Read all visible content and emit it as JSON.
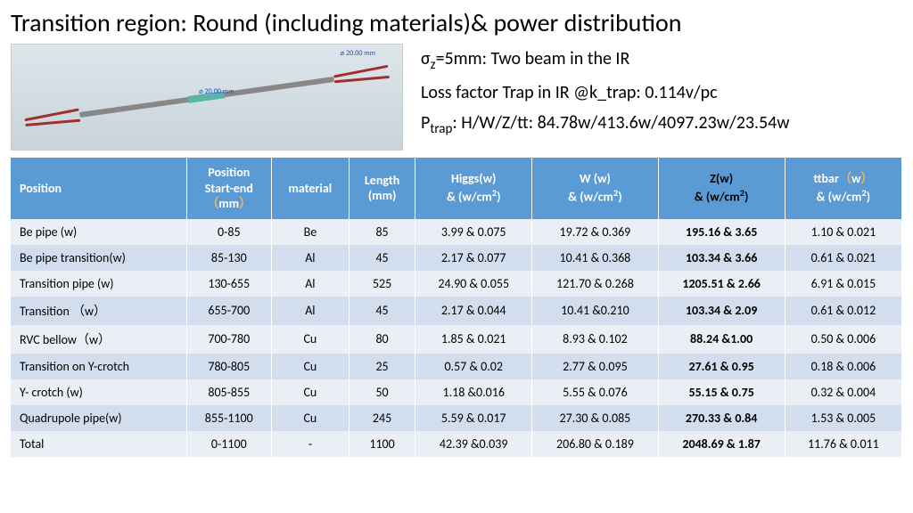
{
  "title": "Transition region: Round (including  materials)& power distribution",
  "cad": {
    "dim1": "⌀ 20.00 mm",
    "dim2": "⌀ 20.00 mm"
  },
  "info": {
    "line1_html": "σ<span class='sub'>z</span>=5mm: Two beam in the IR",
    "line2": "Loss factor Trap in IR @k_trap: 0.114v/pc",
    "line3_html": "P<span class='sub'>trap</span>: H/W/Z/tt:  84.78w/413.6w/4097.23w/23.54w"
  },
  "table": {
    "header_bg": "#5b9bd5",
    "row_odd_bg": "#eaeff5",
    "row_even_bg": "#d2deee",
    "columns": [
      {
        "label_html": "Position"
      },
      {
        "label_html": "Position<br>Start-end<br><span class='cn'>（</span>mm<span class='cn'>）</span>"
      },
      {
        "label_html": "material"
      },
      {
        "label_html": "Length<br>(mm)"
      },
      {
        "label_html": "Higgs(w)<br>& (w/cm<span class='sup'>2</span>)"
      },
      {
        "label_html": "W (w)<br>& (w/cm<span class='sup'>2</span>)"
      },
      {
        "label_html": "Z(w)<br>& (w/cm<span class='sup'>2</span>)",
        "z": true
      },
      {
        "label_html": "ttbar<span class='cn'>（</span>w<span class='cn'>）</span><br>& (w/cm<span class='sup'>2</span>)"
      }
    ],
    "rows": [
      {
        "cells": [
          "Be pipe (w)",
          "0-85",
          "Be",
          "85",
          "3.99 & 0.075",
          "19.72 & 0.369",
          "195.16 & 3.65",
          "1.10 & 0.021"
        ]
      },
      {
        "cells": [
          "Be pipe transition(w)",
          "85-130",
          "Al",
          "45",
          "2.17 & 0.077",
          "10.41 & 0.368",
          "103.34 & 3.66",
          "0.61 & 0.021"
        ]
      },
      {
        "cells": [
          "Transition pipe (w)",
          "130-655",
          "Al",
          "525",
          "24.90 & 0.055",
          "121.70 & 0.268",
          "1205.51 & 2.66",
          "6.91 & 0.015"
        ]
      },
      {
        "cells": [
          "Transition （w）",
          "655-700",
          "Al",
          "45",
          "2.17 & 0.044",
          "10.41 &0.210",
          "103.34 & 2.09",
          "0.61 & 0.012"
        ]
      },
      {
        "cells": [
          "RVC  bellow（w）",
          "700-780",
          "Cu",
          "80",
          "1.85 & 0.021",
          "8.93 & 0.102",
          "88.24 &1.00",
          "0.50 & 0.006"
        ]
      },
      {
        "cells": [
          "Transition on Y-crotch",
          "780-805",
          "Cu",
          "25",
          "0.57 & 0.02",
          "2.77 & 0.095",
          "27.61 & 0.95",
          "0.18 & 0.006"
        ]
      },
      {
        "cells": [
          "Y- crotch (w)",
          "805-855",
          "Cu",
          "50",
          "1.18 &0.016",
          "5.55 & 0.076",
          "55.15 & 0.75",
          "0.32 & 0.004"
        ]
      },
      {
        "cells": [
          "Quadrupole pipe(w)",
          "855-1100",
          "Cu",
          "245",
          "5.59 & 0.017",
          "27.30 & 0.085",
          "270.33 & 0.84",
          "1.53 & 0.005"
        ]
      },
      {
        "cells": [
          "Total",
          "0-1100",
          "-",
          "1100",
          "42.39 &0.039",
          "206.80 & 0.189",
          "2048.69 & 1.87",
          "11.76 & 0.011"
        ]
      }
    ]
  }
}
